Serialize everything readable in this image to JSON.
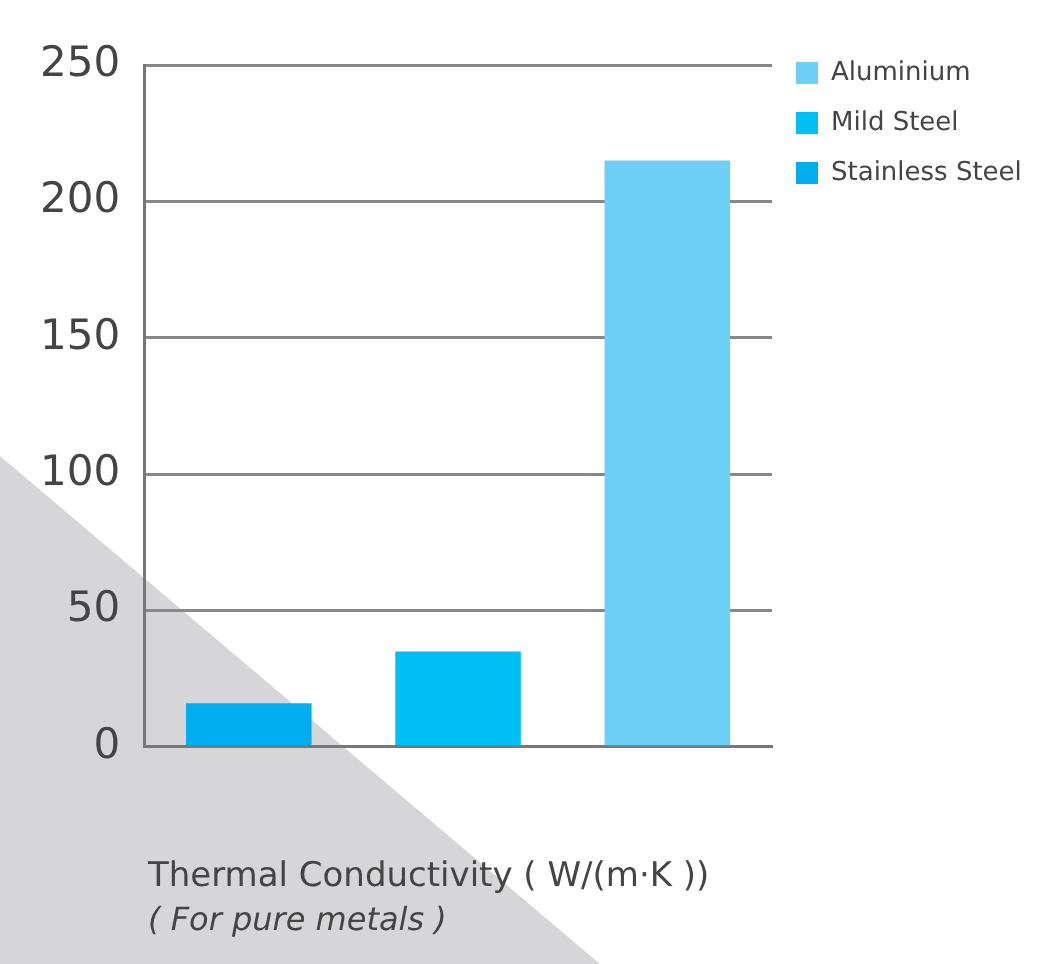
{
  "chart_data": {
    "type": "bar",
    "xlabel": "Thermal Conductivity ( W/(m·K ))",
    "annotations": [
      "( For pure metals )"
    ],
    "categories": [
      null,
      null,
      null
    ],
    "series": [
      {
        "name": "Aluminium",
        "color": "#6dcff6",
        "values": [
          null,
          null,
          215
        ]
      },
      {
        "name": "Mild Steel",
        "color": "#00bff3",
        "values": [
          null,
          35,
          null
        ]
      },
      {
        "name": "Stainless Steel",
        "color": "#00aeef",
        "values": [
          16,
          null,
          null
        ]
      }
    ],
    "ylim": [
      0,
      250
    ],
    "yticks": [
      0,
      50,
      100,
      150,
      200,
      250
    ],
    "grid": "y",
    "legend": "right",
    "tick_labels": "y"
  }
}
